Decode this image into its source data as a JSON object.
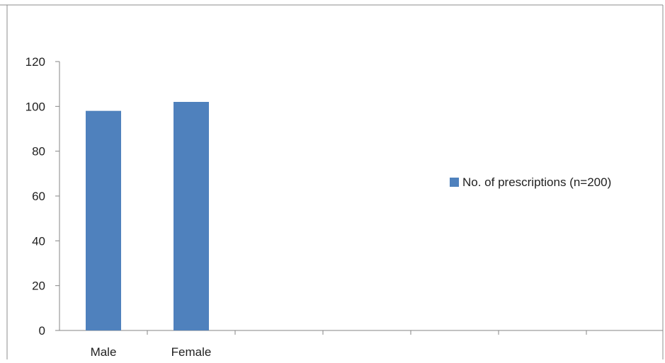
{
  "chart_data": {
    "type": "bar",
    "categories": [
      "Male",
      "Female"
    ],
    "slot_count": 7,
    "series": [
      {
        "name": "No. of prescriptions (n=200)",
        "values": [
          98,
          102
        ],
        "color": "#4f81bd"
      }
    ],
    "yticks": [
      0,
      20,
      40,
      60,
      80,
      100,
      120
    ],
    "ylim": [
      0,
      120
    ],
    "grid": false,
    "legend_position": "right",
    "title": "",
    "xlabel": "",
    "ylabel": ""
  }
}
